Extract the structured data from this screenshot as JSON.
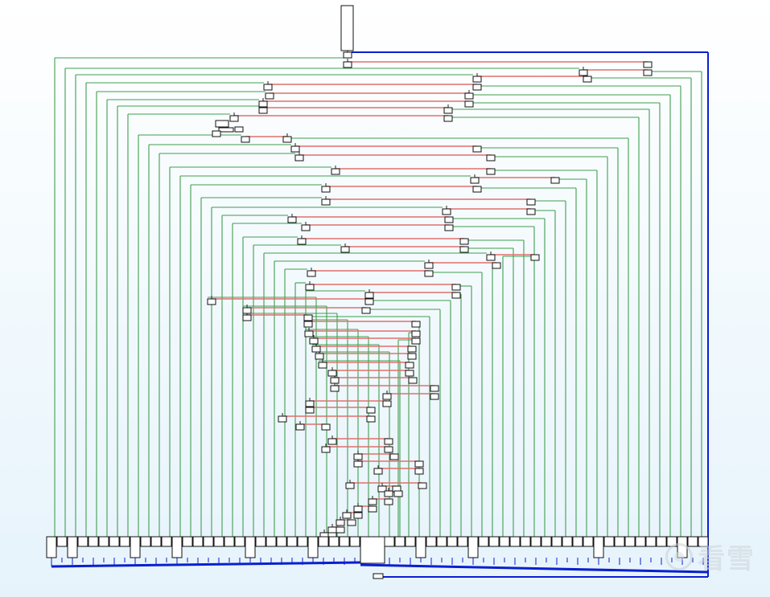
{
  "view": {
    "type": "control-flow-graph",
    "accent_color": "#0a1fd0",
    "colors": {
      "true_branch": "#3f9e4f",
      "false_branch": "#e0706c",
      "back_edge": "#0a1fd0",
      "block_fill": "#ffffff",
      "block_border": "#111111"
    }
  },
  "graph": {
    "visible_blocks": 134,
    "blocks_have_text": false
  },
  "watermark": {
    "text": "看雪",
    "logo_icon": "kanxue-circle-logo-icon"
  }
}
